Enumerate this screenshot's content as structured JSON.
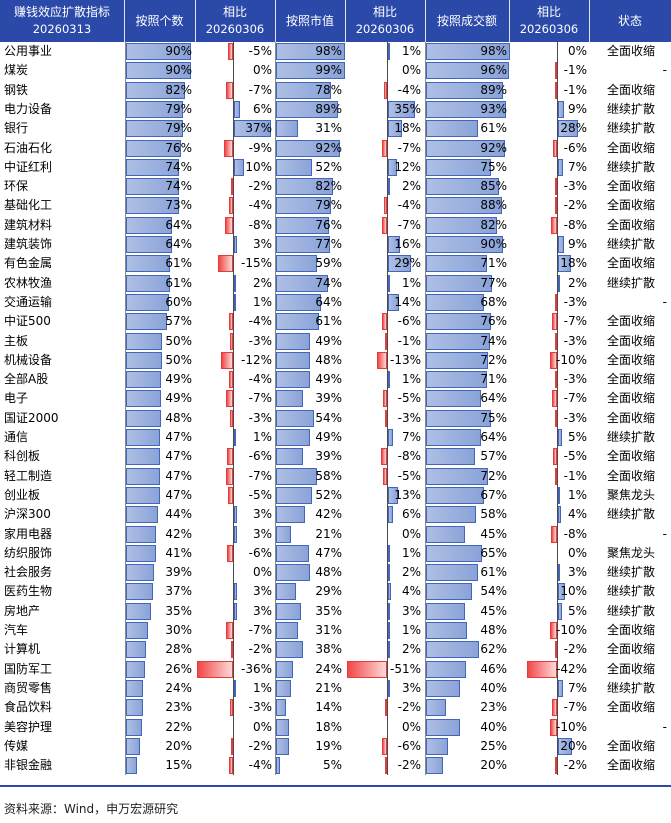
{
  "headers": {
    "index": "赚钱效应扩散指标\n20260313",
    "count": "按照个数",
    "count_cmp": "相比\n20260306",
    "mktcap": "按照市值",
    "mktcap_cmp": "相比\n20260306",
    "turnover": "按照成交额",
    "turnover_cmp": "相比\n20260306",
    "status": "状态"
  },
  "rows": [
    {
      "name": "公用事业",
      "count": 90,
      "count_d": -5,
      "cap": 98,
      "cap_d": 1,
      "to": 98,
      "to_d": 0,
      "status": "全面收缩"
    },
    {
      "name": "煤炭",
      "count": 90,
      "count_d": 0,
      "cap": 99,
      "cap_d": 0,
      "to": 96,
      "to_d": -1,
      "status": "-"
    },
    {
      "name": "钢铁",
      "count": 82,
      "count_d": -7,
      "cap": 78,
      "cap_d": -4,
      "to": 89,
      "to_d": -1,
      "status": "全面收缩"
    },
    {
      "name": "电力设备",
      "count": 79,
      "count_d": 6,
      "cap": 89,
      "cap_d": 35,
      "to": 93,
      "to_d": 9,
      "status": "继续扩散"
    },
    {
      "name": "银行",
      "count": 79,
      "count_d": 37,
      "cap": 31,
      "cap_d": 18,
      "to": 61,
      "to_d": 28,
      "status": "继续扩散"
    },
    {
      "name": "石油石化",
      "count": 76,
      "count_d": -9,
      "cap": 92,
      "cap_d": -7,
      "to": 92,
      "to_d": -6,
      "status": "全面收缩"
    },
    {
      "name": "中证红利",
      "count": 74,
      "count_d": 10,
      "cap": 52,
      "cap_d": 12,
      "to": 75,
      "to_d": 7,
      "status": "继续扩散"
    },
    {
      "name": "环保",
      "count": 74,
      "count_d": -2,
      "cap": 82,
      "cap_d": 2,
      "to": 85,
      "to_d": -3,
      "status": "全面收缩"
    },
    {
      "name": "基础化工",
      "count": 73,
      "count_d": -4,
      "cap": 79,
      "cap_d": -4,
      "to": 88,
      "to_d": -2,
      "status": "全面收缩"
    },
    {
      "name": "建筑材料",
      "count": 64,
      "count_d": -8,
      "cap": 76,
      "cap_d": -7,
      "to": 82,
      "to_d": -8,
      "status": "全面收缩"
    },
    {
      "name": "建筑装饰",
      "count": 64,
      "count_d": 3,
      "cap": 77,
      "cap_d": 16,
      "to": 90,
      "to_d": 9,
      "status": "继续扩散"
    },
    {
      "name": "有色金属",
      "count": 61,
      "count_d": -15,
      "cap": 59,
      "cap_d": 29,
      "to": 71,
      "to_d": 18,
      "status": "全面收缩"
    },
    {
      "name": "农林牧渔",
      "count": 61,
      "count_d": 2,
      "cap": 74,
      "cap_d": 1,
      "to": 77,
      "to_d": 2,
      "status": "继续扩散"
    },
    {
      "name": "交通运输",
      "count": 60,
      "count_d": 1,
      "cap": 64,
      "cap_d": 14,
      "to": 68,
      "to_d": -3,
      "status": "-"
    },
    {
      "name": "中证500",
      "count": 57,
      "count_d": -4,
      "cap": 61,
      "cap_d": -6,
      "to": 76,
      "to_d": -7,
      "status": "全面收缩"
    },
    {
      "name": "主板",
      "count": 50,
      "count_d": -3,
      "cap": 49,
      "cap_d": -1,
      "to": 74,
      "to_d": -3,
      "status": "全面收缩"
    },
    {
      "name": "机械设备",
      "count": 50,
      "count_d": -12,
      "cap": 48,
      "cap_d": -13,
      "to": 72,
      "to_d": -10,
      "status": "全面收缩"
    },
    {
      "name": "全部A股",
      "count": 49,
      "count_d": -4,
      "cap": 49,
      "cap_d": 1,
      "to": 71,
      "to_d": -3,
      "status": "全面收缩"
    },
    {
      "name": "电子",
      "count": 49,
      "count_d": -7,
      "cap": 39,
      "cap_d": -5,
      "to": 64,
      "to_d": -7,
      "status": "全面收缩"
    },
    {
      "name": "国证2000",
      "count": 48,
      "count_d": -3,
      "cap": 54,
      "cap_d": -3,
      "to": 75,
      "to_d": -3,
      "status": "全面收缩"
    },
    {
      "name": "通信",
      "count": 47,
      "count_d": 1,
      "cap": 49,
      "cap_d": 7,
      "to": 64,
      "to_d": 5,
      "status": "继续扩散"
    },
    {
      "name": "科创板",
      "count": 47,
      "count_d": -6,
      "cap": 39,
      "cap_d": -8,
      "to": 57,
      "to_d": -5,
      "status": "全面收缩"
    },
    {
      "name": "轻工制造",
      "count": 47,
      "count_d": -7,
      "cap": 58,
      "cap_d": -5,
      "to": 72,
      "to_d": -1,
      "status": "全面收缩"
    },
    {
      "name": "创业板",
      "count": 47,
      "count_d": -5,
      "cap": 52,
      "cap_d": 13,
      "to": 67,
      "to_d": 1,
      "status": "聚焦龙头"
    },
    {
      "name": "沪深300",
      "count": 44,
      "count_d": 3,
      "cap": 42,
      "cap_d": 6,
      "to": 58,
      "to_d": 4,
      "status": "继续扩散"
    },
    {
      "name": "家用电器",
      "count": 42,
      "count_d": 3,
      "cap": 21,
      "cap_d": 0,
      "to": 45,
      "to_d": -8,
      "status": "-"
    },
    {
      "name": "纺织服饰",
      "count": 41,
      "count_d": -6,
      "cap": 47,
      "cap_d": 1,
      "to": 65,
      "to_d": 0,
      "status": "聚焦龙头"
    },
    {
      "name": "社会服务",
      "count": 39,
      "count_d": 0,
      "cap": 48,
      "cap_d": 2,
      "to": 61,
      "to_d": 3,
      "status": "继续扩散"
    },
    {
      "name": "医药生物",
      "count": 37,
      "count_d": 3,
      "cap": 29,
      "cap_d": 4,
      "to": 54,
      "to_d": 10,
      "status": "继续扩散"
    },
    {
      "name": "房地产",
      "count": 35,
      "count_d": 3,
      "cap": 35,
      "cap_d": 3,
      "to": 45,
      "to_d": 5,
      "status": "继续扩散"
    },
    {
      "name": "汽车",
      "count": 30,
      "count_d": -7,
      "cap": 31,
      "cap_d": 1,
      "to": 48,
      "to_d": -10,
      "status": "全面收缩"
    },
    {
      "name": "计算机",
      "count": 28,
      "count_d": -2,
      "cap": 38,
      "cap_d": 2,
      "to": 62,
      "to_d": -2,
      "status": "全面收缩"
    },
    {
      "name": "国防军工",
      "count": 26,
      "count_d": -36,
      "cap": 24,
      "cap_d": -51,
      "to": 46,
      "to_d": -42,
      "status": "全面收缩"
    },
    {
      "name": "商贸零售",
      "count": 24,
      "count_d": 1,
      "cap": 21,
      "cap_d": 3,
      "to": 40,
      "to_d": 7,
      "status": "继续扩散"
    },
    {
      "name": "食品饮料",
      "count": 23,
      "count_d": -3,
      "cap": 14,
      "cap_d": -2,
      "to": 23,
      "to_d": -7,
      "status": "全面收缩"
    },
    {
      "name": "美容护理",
      "count": 22,
      "count_d": 0,
      "cap": 18,
      "cap_d": 0,
      "to": 40,
      "to_d": -10,
      "status": "-"
    },
    {
      "name": "传媒",
      "count": 20,
      "count_d": -2,
      "cap": 19,
      "cap_d": -6,
      "to": 25,
      "to_d": 20,
      "status": "全面收缩"
    },
    {
      "name": "非银金融",
      "count": 15,
      "count_d": -4,
      "cap": 5,
      "cap_d": -2,
      "to": 20,
      "to_d": -2,
      "status": "全面收缩"
    }
  ],
  "source": "资料来源：Wind，申万宏源研究",
  "colors": {
    "header_bg": "#2a49a9",
    "blue_bar": "#8aa3d8",
    "red_bar": "#f04848"
  }
}
